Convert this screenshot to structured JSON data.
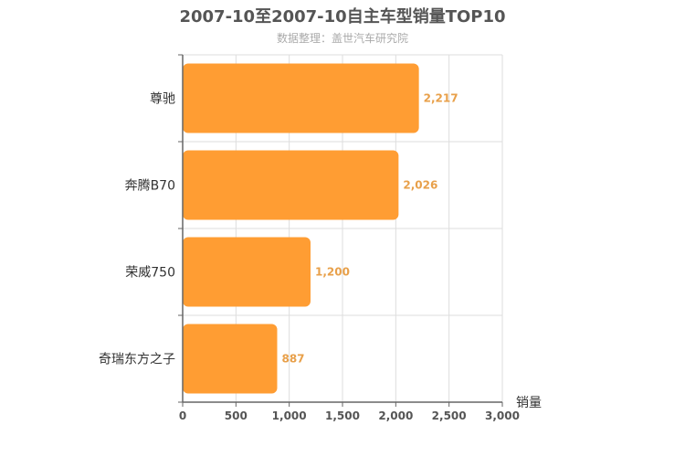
{
  "chart_data": {
    "type": "bar",
    "orientation": "horizontal",
    "title": "2007-10至2007-10自主车型销量TOP10",
    "subtitle": "数据整理：盖世汽车研究院",
    "xlabel": "销量",
    "ylabel": "",
    "categories": [
      "尊驰",
      "奔腾B70",
      "荣威750",
      "奇瑞东方之子"
    ],
    "values": [
      2217,
      2026,
      1200,
      887
    ],
    "value_labels": [
      "2,217",
      "2,026",
      "1,200",
      "887"
    ],
    "xlim": [
      0,
      3000
    ],
    "x_ticks": [
      0,
      500,
      1000,
      1500,
      2000,
      2500,
      3000
    ],
    "x_tick_labels": [
      "0",
      "500",
      "1,000",
      "1,500",
      "2,000",
      "2,500",
      "3,000"
    ],
    "grid": true,
    "legend": "none",
    "colors": {
      "bar": "#ff9d33",
      "value_label": "#e8a04a",
      "title": "#555555",
      "subtitle": "#aaaaaa",
      "grid": "#dddddd",
      "axis": "#666666"
    }
  }
}
